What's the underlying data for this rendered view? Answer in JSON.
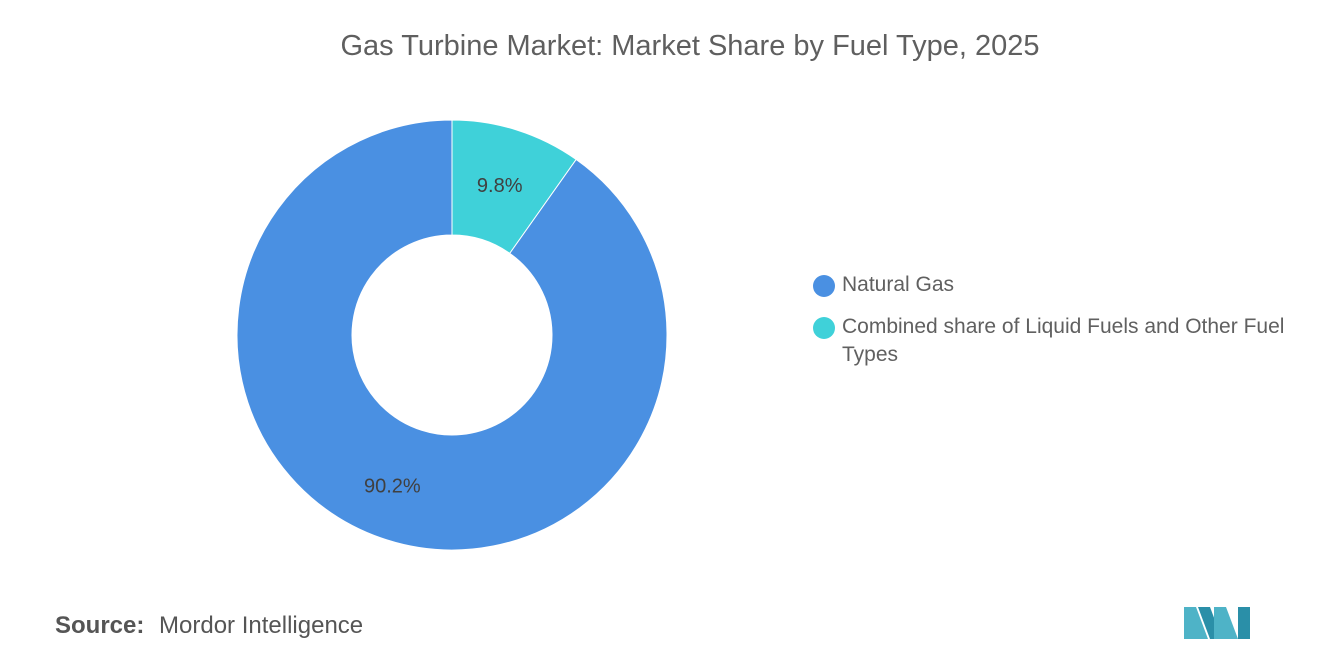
{
  "title": "Gas Turbine Market: Market Share by Fuel Type, 2025",
  "source": {
    "key": "Source:",
    "value": "Mordor Intelligence"
  },
  "colors": {
    "natural_gas": "#4a90e2",
    "combined_other": "#3fd1d9",
    "title_text": "#5f5f5f",
    "logo": "#4eb3c7"
  },
  "chart_data": {
    "type": "pie",
    "variant": "donut",
    "title": "Gas Turbine Market: Market Share by Fuel Type, 2025",
    "unit": "%",
    "legend_position": "right",
    "slices": [
      {
        "label": "Natural Gas",
        "value": 90.2,
        "display": "90.2%",
        "color": "#4a90e2"
      },
      {
        "label": "Combined share of Liquid Fuels and Other Fuel Types",
        "value": 9.8,
        "display": "9.8%",
        "color": "#3fd1d9"
      }
    ]
  },
  "legend": [
    {
      "label": "Natural Gas",
      "color": "#4a90e2"
    },
    {
      "label": "Combined share of Liquid Fuels and Other Fuel Types",
      "color": "#3fd1d9"
    }
  ],
  "logo": {
    "icon": "mordor-intelligence-logo-icon"
  }
}
